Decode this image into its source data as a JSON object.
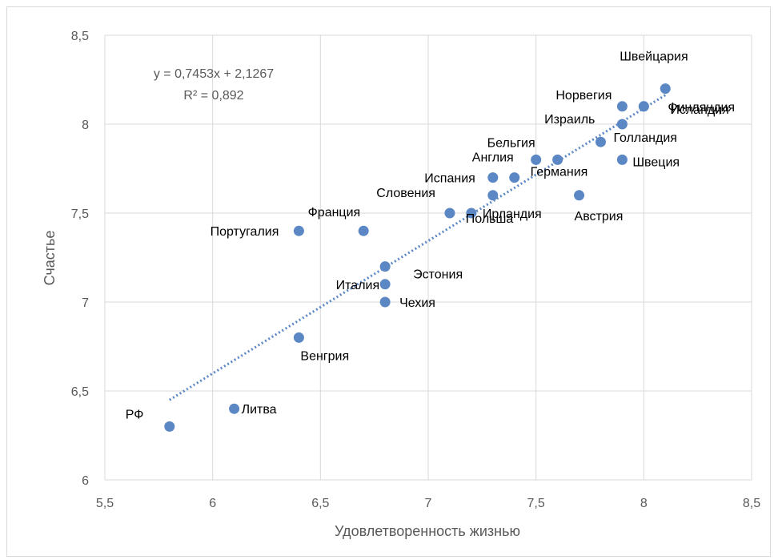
{
  "chart_data": {
    "type": "scatter",
    "xlabel": "Удовлетворенность жизнью",
    "ylabel": "Счастье",
    "xlim": [
      5.5,
      8.5
    ],
    "ylim": [
      6,
      8.5
    ],
    "xticks": [
      "5,5",
      "6",
      "6,5",
      "7",
      "7,5",
      "8",
      "8,5"
    ],
    "yticks": [
      "6",
      "6,5",
      "7",
      "7,5",
      "8",
      "8,5"
    ],
    "grid": true,
    "marker_color": "#5b87c5",
    "trendline": {
      "type": "linear",
      "slope": 0.7453,
      "intercept": 2.1267,
      "x_range": [
        5.8,
        8.1
      ],
      "color": "#5b87c5",
      "equation": "y = 0,7453x + 2,1267",
      "r_squared": "R² = 0,892"
    },
    "points": [
      {
        "label": "РФ",
        "x": 5.8,
        "y": 6.3
      },
      {
        "label": "Литва",
        "x": 6.1,
        "y": 6.4
      },
      {
        "label": "Венгрия",
        "x": 6.4,
        "y": 6.8
      },
      {
        "label": "Португалия",
        "x": 6.4,
        "y": 7.4
      },
      {
        "label": "Франция",
        "x": 6.7,
        "y": 7.4
      },
      {
        "label": "Эстония",
        "x": 6.8,
        "y": 7.2
      },
      {
        "label": "Италия",
        "x": 6.8,
        "y": 7.1
      },
      {
        "label": "Чехия",
        "x": 6.8,
        "y": 7.0
      },
      {
        "label": "Словения",
        "x": 7.1,
        "y": 7.5
      },
      {
        "label": "Ирландия",
        "x": 7.2,
        "y": 7.5
      },
      {
        "label": "Польша",
        "x": 7.3,
        "y": 7.6
      },
      {
        "label": "Испания",
        "x": 7.3,
        "y": 7.7
      },
      {
        "label": "Англия",
        "x": 7.4,
        "y": 7.7
      },
      {
        "label": "Бельгия",
        "x": 7.5,
        "y": 7.8
      },
      {
        "label": "Германия",
        "x": 7.6,
        "y": 7.8
      },
      {
        "label": "Австрия",
        "x": 7.7,
        "y": 7.6
      },
      {
        "label": "Голландия",
        "x": 7.8,
        "y": 7.9
      },
      {
        "label": "Швеция",
        "x": 7.9,
        "y": 7.8
      },
      {
        "label": "Израиль",
        "x": 7.9,
        "y": 8.0
      },
      {
        "label": "Норвегия",
        "x": 7.9,
        "y": 8.1
      },
      {
        "label": "Исландия",
        "x": 8.0,
        "y": 8.1
      },
      {
        "label": "Финляндия",
        "x": 8.0,
        "y": 8.1
      },
      {
        "label": "Швейцария",
        "x": 8.1,
        "y": 8.2
      }
    ]
  }
}
